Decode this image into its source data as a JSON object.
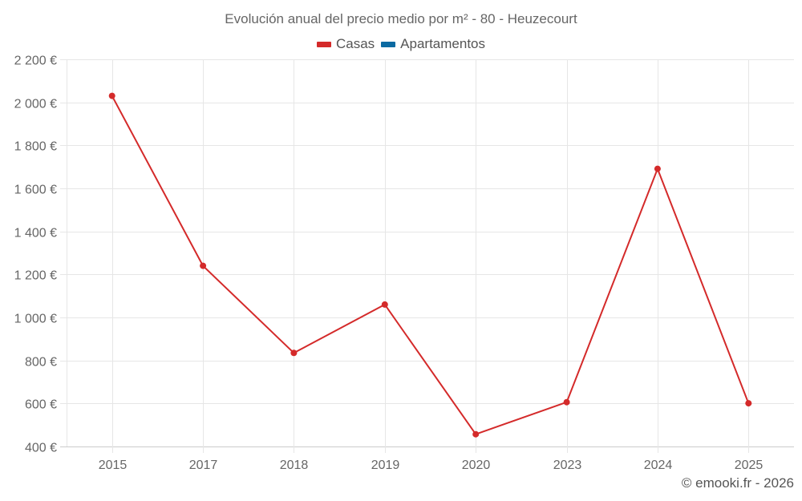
{
  "title": "Evolución anual del precio medio por m² - 80 - Heuzecourt",
  "legend": [
    {
      "label": "Casas",
      "color": "#d42a2a"
    },
    {
      "label": "Apartamentos",
      "color": "#0b6aa2"
    }
  ],
  "credit": "© emooki.fr - 2026",
  "chart_data": {
    "type": "line",
    "title": "Evolución anual del precio medio por m² - 80 - Heuzecourt",
    "xlabel": "",
    "ylabel": "",
    "categories": [
      "2015",
      "2017",
      "2018",
      "2019",
      "2020",
      "2023",
      "2024",
      "2025"
    ],
    "series": [
      {
        "name": "Casas",
        "color": "#d42a2a",
        "values": [
          2030,
          1240,
          835,
          1060,
          457,
          606,
          1691,
          601
        ]
      },
      {
        "name": "Apartamentos",
        "color": "#0b6aa2",
        "values": []
      }
    ],
    "ylim": [
      400,
      2200
    ],
    "yticks": [
      400,
      600,
      800,
      1000,
      1200,
      1400,
      1600,
      1800,
      2000,
      2200
    ],
    "ytick_labels": [
      "400 €",
      "600 €",
      "800 €",
      "1 000 €",
      "1 200 €",
      "1 400 €",
      "1 600 €",
      "1 800 €",
      "2 000 €",
      "2 200 €"
    ],
    "grid": true,
    "legend_position": "top"
  }
}
